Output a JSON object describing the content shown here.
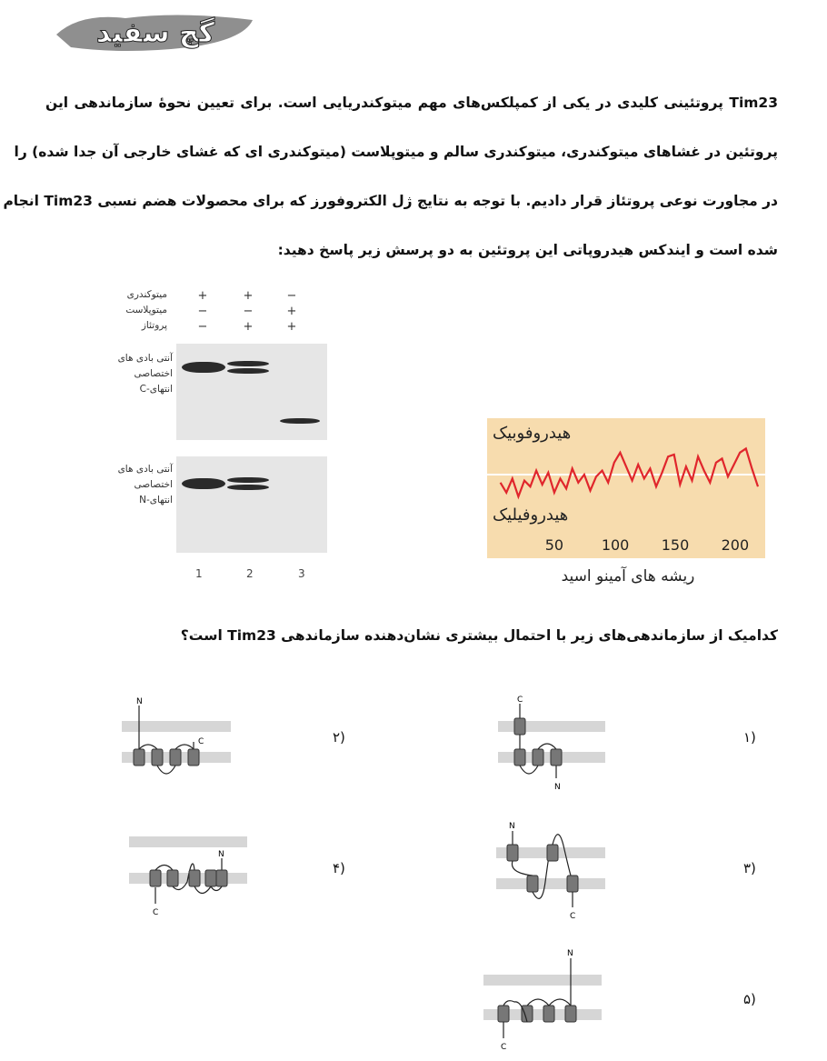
{
  "logo": {
    "text": "گچ سفید"
  },
  "intro": {
    "lines": [
      "Tim23 پروتئینی کلیدی در یکی از کمپلکس‌های مهم میتوکندریایی است. برای تعیین نحوهٔ سازماندهی این",
      "پروتئین در غشاهای میتوکندری، میتوکندری سالم و میتوپلاست (میتوکندری ای که غشای خارجی آن جدا شده) را",
      "در مجاورت نوعی پروتئاز قرار دادیم. با توجه به نتایج ژل الکتروفورز که برای محصولات هضم نسبی Tim23 انجام",
      "شده است و ایندکس هیدروپاتی این پروتئین به دو پرسش زیر پاسخ دهید:"
    ]
  },
  "blot": {
    "rows": [
      {
        "label": "میتوکندری",
        "signs": [
          "+",
          "+",
          "−"
        ]
      },
      {
        "label": "میتوپلاست",
        "signs": [
          "−",
          "−",
          "+"
        ]
      },
      {
        "label": "پروتئاز",
        "signs": [
          "−",
          "+",
          "+"
        ]
      }
    ],
    "panel_top_label": [
      "آنتی بادی های",
      "اختصاصی",
      "انتهای-C"
    ],
    "panel_bottom_label": [
      "آنتی بادی های",
      "اختصاصی",
      "انتهای-N"
    ],
    "lanes": [
      "1",
      "2",
      "3"
    ]
  },
  "chart_data": {
    "type": "line",
    "title": "",
    "xlabel": "ریشه های آمینو اسید",
    "ylabel": "",
    "xlim": [
      0,
      220
    ],
    "x_ticks": [
      "50",
      "100",
      "150",
      "200"
    ],
    "band_labels": {
      "top": "هیدروفوبیک",
      "bottom": "هیدروفیلیک"
    },
    "line_color": "#e0262c",
    "background_color": "#f7dcae",
    "series": [
      {
        "x": [
          5,
          10,
          15,
          20,
          25,
          30,
          35,
          40,
          45,
          50,
          55,
          60,
          65,
          70,
          75,
          80,
          85,
          90,
          95,
          100,
          105,
          110,
          115,
          120,
          125,
          130,
          135,
          140,
          145,
          150,
          155,
          160,
          165,
          170,
          175,
          180,
          185,
          190,
          195,
          200,
          205,
          210,
          215,
          220
        ],
        "values": [
          -0.4,
          -0.9,
          -0.2,
          -1.1,
          -0.3,
          -0.6,
          0.2,
          -0.5,
          0.1,
          -0.9,
          -0.2,
          -0.7,
          0.3,
          -0.4,
          0.0,
          -0.8,
          -0.1,
          0.2,
          -0.4,
          0.6,
          1.1,
          0.4,
          -0.3,
          0.5,
          -0.2,
          0.3,
          -0.6,
          0.1,
          0.9,
          1.0,
          -0.5,
          0.4,
          -0.3,
          0.9,
          0.2,
          -0.4,
          0.6,
          0.8,
          -0.1,
          0.5,
          1.1,
          1.3,
          0.3,
          -0.6
        ]
      }
    ]
  },
  "question": {
    "text": "کدامیک از سازماندهی‌های زیر با احتمال بیشتری نشان‌دهنده سازماندهی Tim23 است؟"
  },
  "options": [
    {
      "number": "۱)",
      "n_label": "N",
      "c_label": "C"
    },
    {
      "number": "۲)",
      "n_label": "N",
      "c_label": "C"
    },
    {
      "number": "۳)",
      "n_label": "N",
      "c_label": "C"
    },
    {
      "number": "۴)",
      "n_label": "N",
      "c_label": "C"
    },
    {
      "number": "۵)",
      "n_label": "N",
      "c_label": "C"
    }
  ]
}
